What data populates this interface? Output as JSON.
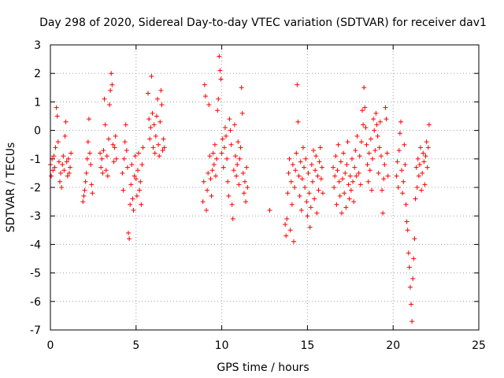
{
  "chart_data": {
    "type": "scatter",
    "title": "Day 298 of 2020, Sidereal Day-to-day VTEC variation (SDTVAR) for receiver dav1",
    "xlabel": "GPS time / hours",
    "ylabel": "SDTVAR / TECUs",
    "xlim": [
      0,
      25
    ],
    "ylim": [
      -7,
      3
    ],
    "xticks": [
      0,
      5,
      10,
      15,
      20,
      25
    ],
    "yticks": [
      -7,
      -6,
      -5,
      -4,
      -3,
      -2,
      -1,
      0,
      1,
      2,
      3
    ],
    "grid": true,
    "marker": "+",
    "color": "#ff0000",
    "series": [
      {
        "name": "dav1",
        "points": [
          [
            0.0,
            -1.2
          ],
          [
            0.05,
            -1.6
          ],
          [
            0.1,
            -1.0
          ],
          [
            0.15,
            -1.4
          ],
          [
            0.2,
            -0.9
          ],
          [
            0.25,
            -1.3
          ],
          [
            0.3,
            -0.6
          ],
          [
            0.35,
            0.8
          ],
          [
            0.4,
            0.5
          ],
          [
            0.45,
            -0.4
          ],
          [
            0.5,
            -1.1
          ],
          [
            0.55,
            -1.8
          ],
          [
            0.6,
            -1.5
          ],
          [
            0.65,
            -2.0
          ],
          [
            0.7,
            -1.2
          ],
          [
            0.75,
            -0.9
          ],
          [
            0.8,
            -1.4
          ],
          [
            0.85,
            -0.2
          ],
          [
            0.9,
            0.3
          ],
          [
            0.95,
            -1.1
          ],
          [
            1.0,
            -1.6
          ],
          [
            1.05,
            -1.0
          ],
          [
            1.1,
            -1.5
          ],
          [
            1.15,
            -1.3
          ],
          [
            1.2,
            -0.8
          ],
          [
            1.9,
            -2.5
          ],
          [
            1.95,
            -2.3
          ],
          [
            2.0,
            -2.1
          ],
          [
            2.05,
            -1.8
          ],
          [
            2.1,
            -1.5
          ],
          [
            2.15,
            -1.0
          ],
          [
            2.2,
            -0.4
          ],
          [
            2.25,
            0.4
          ],
          [
            2.3,
            -0.8
          ],
          [
            2.35,
            -1.2
          ],
          [
            2.4,
            -1.9
          ],
          [
            2.45,
            -2.2
          ],
          [
            2.9,
            -0.8
          ],
          [
            2.95,
            -1.3
          ],
          [
            3.0,
            -1.0
          ],
          [
            3.05,
            -1.5
          ],
          [
            3.1,
            -0.7
          ],
          [
            3.15,
            1.1
          ],
          [
            3.2,
            0.2
          ],
          [
            3.25,
            -1.4
          ],
          [
            3.3,
            -0.9
          ],
          [
            3.35,
            -1.6
          ],
          [
            3.4,
            -0.3
          ],
          [
            3.45,
            0.9
          ],
          [
            3.5,
            1.4
          ],
          [
            3.55,
            2.0
          ],
          [
            3.6,
            1.6
          ],
          [
            3.65,
            -0.5
          ],
          [
            3.7,
            -1.1
          ],
          [
            3.75,
            -0.6
          ],
          [
            3.8,
            -0.2
          ],
          [
            3.85,
            -1.0
          ],
          [
            4.2,
            -1.5
          ],
          [
            4.25,
            -2.1
          ],
          [
            4.3,
            -1.0
          ],
          [
            4.35,
            -0.4
          ],
          [
            4.4,
            0.2
          ],
          [
            4.45,
            -0.7
          ],
          [
            4.5,
            -1.3
          ],
          [
            4.55,
            -3.6
          ],
          [
            4.6,
            -3.8
          ],
          [
            4.65,
            -2.6
          ],
          [
            4.7,
            -1.9
          ],
          [
            4.75,
            -1.2
          ],
          [
            4.8,
            -2.4
          ],
          [
            4.85,
            -2.8
          ],
          [
            4.9,
            -1.6
          ],
          [
            4.95,
            -0.9
          ],
          [
            5.0,
            -1.7
          ],
          [
            5.05,
            -2.3
          ],
          [
            5.1,
            -1.4
          ],
          [
            5.15,
            -0.8
          ],
          [
            5.2,
            -2.1
          ],
          [
            5.25,
            -1.8
          ],
          [
            5.3,
            -2.6
          ],
          [
            5.35,
            -1.2
          ],
          [
            5.4,
            -0.6
          ],
          [
            5.7,
            1.3
          ],
          [
            5.75,
            0.4
          ],
          [
            5.8,
            -0.3
          ],
          [
            5.85,
            0.1
          ],
          [
            5.9,
            1.9
          ],
          [
            5.95,
            0.6
          ],
          [
            6.0,
            -0.6
          ],
          [
            6.05,
            0.2
          ],
          [
            6.1,
            -0.8
          ],
          [
            6.15,
            -0.2
          ],
          [
            6.2,
            0.5
          ],
          [
            6.25,
            1.1
          ],
          [
            6.3,
            -0.5
          ],
          [
            6.35,
            -0.9
          ],
          [
            6.4,
            0.3
          ],
          [
            6.45,
            1.4
          ],
          [
            6.5,
            0.9
          ],
          [
            6.55,
            -0.7
          ],
          [
            6.6,
            -0.3
          ],
          [
            6.65,
            -0.6
          ],
          [
            8.9,
            -2.5
          ],
          [
            8.95,
            -1.8
          ],
          [
            9.0,
            1.6
          ],
          [
            9.05,
            1.2
          ],
          [
            9.1,
            -2.8
          ],
          [
            9.15,
            -2.1
          ],
          [
            9.2,
            -1.5
          ],
          [
            9.25,
            0.9
          ],
          [
            9.3,
            -0.9
          ],
          [
            9.35,
            -1.7
          ],
          [
            9.4,
            -2.3
          ],
          [
            9.45,
            -1.4
          ],
          [
            9.5,
            -0.8
          ],
          [
            9.55,
            -1.2
          ],
          [
            9.6,
            -0.5
          ],
          [
            9.65,
            -1.6
          ],
          [
            9.7,
            -1.0
          ],
          [
            9.75,
            0.7
          ],
          [
            9.8,
            1.1
          ],
          [
            9.85,
            2.6
          ],
          [
            9.9,
            2.1
          ],
          [
            9.95,
            1.8
          ],
          [
            10.0,
            -0.8
          ],
          [
            10.05,
            -0.3
          ],
          [
            10.1,
            -1.3
          ],
          [
            10.15,
            -0.6
          ],
          [
            10.2,
            0.1
          ],
          [
            10.25,
            -0.2
          ],
          [
            10.3,
            -1.0
          ],
          [
            10.35,
            -1.8
          ],
          [
            10.4,
            -2.3
          ],
          [
            10.45,
            0.4
          ],
          [
            10.5,
            0.0
          ],
          [
            10.55,
            -0.5
          ],
          [
            10.6,
            -2.6
          ],
          [
            10.65,
            -3.1
          ],
          [
            10.7,
            -1.4
          ],
          [
            10.75,
            0.2
          ],
          [
            10.8,
            -0.9
          ],
          [
            10.85,
            -1.6
          ],
          [
            10.9,
            -1.2
          ],
          [
            10.95,
            -0.4
          ],
          [
            11.0,
            -1.9
          ],
          [
            11.05,
            -1.0
          ],
          [
            11.1,
            -0.6
          ],
          [
            11.15,
            1.5
          ],
          [
            11.2,
            0.6
          ],
          [
            11.25,
            -1.5
          ],
          [
            11.3,
            -2.2
          ],
          [
            11.35,
            -1.8
          ],
          [
            11.4,
            -2.5
          ],
          [
            11.45,
            -1.3
          ],
          [
            11.5,
            -2.0
          ],
          [
            12.8,
            -2.8
          ],
          [
            13.7,
            -3.3
          ],
          [
            13.75,
            -3.7
          ],
          [
            13.8,
            -3.1
          ],
          [
            13.85,
            -2.2
          ],
          [
            13.9,
            -1.5
          ],
          [
            13.95,
            -1.0
          ],
          [
            14.0,
            -3.5
          ],
          [
            14.05,
            -1.8
          ],
          [
            14.1,
            -2.6
          ],
          [
            14.15,
            -1.2
          ],
          [
            14.2,
            -3.9
          ],
          [
            14.25,
            -2.0
          ],
          [
            14.3,
            -1.4
          ],
          [
            14.35,
            -0.8
          ],
          [
            14.4,
            1.6
          ],
          [
            14.45,
            0.3
          ],
          [
            14.5,
            -1.6
          ],
          [
            14.55,
            -2.3
          ],
          [
            14.6,
            -1.1
          ],
          [
            14.65,
            -2.8
          ],
          [
            14.7,
            -1.7
          ],
          [
            14.75,
            -0.6
          ],
          [
            14.8,
            -1.3
          ],
          [
            14.85,
            -2.0
          ],
          [
            14.9,
            -1.0
          ],
          [
            14.95,
            -2.5
          ],
          [
            15.0,
            -3.0
          ],
          [
            15.05,
            -1.5
          ],
          [
            15.1,
            -2.2
          ],
          [
            15.15,
            -3.4
          ],
          [
            15.2,
            -2.7
          ],
          [
            15.25,
            -1.2
          ],
          [
            15.3,
            -1.8
          ],
          [
            15.35,
            -0.7
          ],
          [
            15.4,
            -2.4
          ],
          [
            15.45,
            -1.4
          ],
          [
            15.5,
            -0.9
          ],
          [
            15.55,
            -2.9
          ],
          [
            15.6,
            -1.6
          ],
          [
            15.65,
            -2.1
          ],
          [
            15.7,
            -1.1
          ],
          [
            15.75,
            -0.6
          ],
          [
            15.8,
            -1.7
          ],
          [
            15.85,
            -1.3
          ],
          [
            15.9,
            -2.2
          ],
          [
            16.5,
            -1.3
          ],
          [
            16.55,
            -2.0
          ],
          [
            16.6,
            -1.6
          ],
          [
            16.65,
            -0.9
          ],
          [
            16.7,
            -2.6
          ],
          [
            16.75,
            -1.4
          ],
          [
            16.8,
            -0.5
          ],
          [
            16.85,
            -1.8
          ],
          [
            16.9,
            -2.3
          ],
          [
            16.95,
            -1.1
          ],
          [
            17.0,
            -2.9
          ],
          [
            17.05,
            -1.7
          ],
          [
            17.1,
            -0.8
          ],
          [
            17.15,
            -2.2
          ],
          [
            17.2,
            -1.5
          ],
          [
            17.25,
            -2.7
          ],
          [
            17.3,
            -1.2
          ],
          [
            17.35,
            -0.4
          ],
          [
            17.4,
            -1.9
          ],
          [
            17.45,
            -2.4
          ],
          [
            17.5,
            -1.6
          ],
          [
            17.55,
            -2.1
          ],
          [
            17.6,
            -1.0
          ],
          [
            17.65,
            -1.8
          ],
          [
            17.7,
            -2.5
          ],
          [
            17.75,
            -1.3
          ],
          [
            17.8,
            -0.7
          ],
          [
            17.85,
            -1.6
          ],
          [
            17.9,
            -0.2
          ],
          [
            18.0,
            -1.5
          ],
          [
            18.05,
            -0.9
          ],
          [
            18.1,
            -1.9
          ],
          [
            18.15,
            -0.4
          ],
          [
            18.2,
            0.7
          ],
          [
            18.25,
            0.2
          ],
          [
            18.3,
            1.5
          ],
          [
            18.35,
            0.8
          ],
          [
            18.4,
            0.1
          ],
          [
            18.45,
            -0.5
          ],
          [
            18.5,
            -1.2
          ],
          [
            18.55,
            -1.8
          ],
          [
            18.6,
            -0.8
          ],
          [
            18.65,
            -1.4
          ],
          [
            18.7,
            -0.3
          ],
          [
            18.75,
            -2.1
          ],
          [
            18.8,
            -1.0
          ],
          [
            18.85,
            0.4
          ],
          [
            18.9,
            0.0
          ],
          [
            18.95,
            -0.7
          ],
          [
            19.0,
            0.6
          ],
          [
            19.05,
            0.2
          ],
          [
            19.1,
            -0.2
          ],
          [
            19.15,
            -1.5
          ],
          [
            19.2,
            -0.6
          ],
          [
            19.25,
            0.3
          ],
          [
            19.3,
            -0.9
          ],
          [
            19.35,
            -2.1
          ],
          [
            19.4,
            -2.9
          ],
          [
            19.45,
            -1.7
          ],
          [
            19.5,
            -1.2
          ],
          [
            19.55,
            0.8
          ],
          [
            19.6,
            0.4
          ],
          [
            19.65,
            -0.8
          ],
          [
            19.7,
            -1.6
          ],
          [
            20.2,
            -1.6
          ],
          [
            20.25,
            -1.1
          ],
          [
            20.3,
            -2.0
          ],
          [
            20.35,
            -0.7
          ],
          [
            20.4,
            -0.1
          ],
          [
            20.45,
            0.3
          ],
          [
            20.5,
            -1.4
          ],
          [
            20.55,
            -2.2
          ],
          [
            20.6,
            -1.8
          ],
          [
            20.65,
            -0.5
          ],
          [
            20.7,
            -1.2
          ],
          [
            20.75,
            -2.6
          ],
          [
            20.8,
            -3.2
          ],
          [
            20.85,
            -3.5
          ],
          [
            20.9,
            -4.3
          ],
          [
            20.95,
            -4.8
          ],
          [
            21.0,
            -5.5
          ],
          [
            21.05,
            -6.1
          ],
          [
            21.1,
            -6.7
          ],
          [
            21.15,
            -5.2
          ],
          [
            21.2,
            -4.5
          ],
          [
            21.25,
            -3.8
          ],
          [
            21.3,
            -2.4
          ],
          [
            21.35,
            -1.3
          ],
          [
            21.4,
            -2.0
          ],
          [
            21.45,
            -1.0
          ],
          [
            21.5,
            -1.6
          ],
          [
            21.55,
            -1.2
          ],
          [
            21.6,
            -0.6
          ],
          [
            21.65,
            -2.1
          ],
          [
            21.7,
            -1.5
          ],
          [
            21.75,
            -0.8
          ],
          [
            21.8,
            -1.1
          ],
          [
            21.85,
            -1.9
          ],
          [
            21.9,
            -0.9
          ],
          [
            21.95,
            -0.4
          ],
          [
            22.0,
            -1.3
          ],
          [
            22.05,
            -0.6
          ],
          [
            22.1,
            0.2
          ]
        ]
      }
    ]
  }
}
